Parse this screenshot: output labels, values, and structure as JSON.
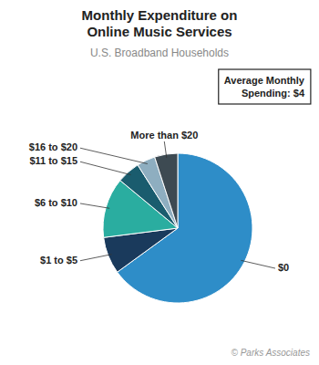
{
  "chart_data": {
    "type": "pie",
    "title": "Monthly Expenditure on\nOnline Music Services",
    "subtitle": "U.S. Broadband Households",
    "categories": [
      "$0",
      "$1 to $5",
      "$6 to $10",
      "$11 to $15",
      "$16 to $20",
      "More than $20"
    ],
    "values": [
      65,
      8,
      13,
      5,
      4,
      5
    ],
    "colors": [
      "#2e8dc8",
      "#1a3a5c",
      "#2aada0",
      "#1a5c6e",
      "#8eaec0",
      "#3d4a52"
    ],
    "annotations": [
      "Average Monthly\nSpending: $4",
      "© Parks Associates"
    ]
  }
}
